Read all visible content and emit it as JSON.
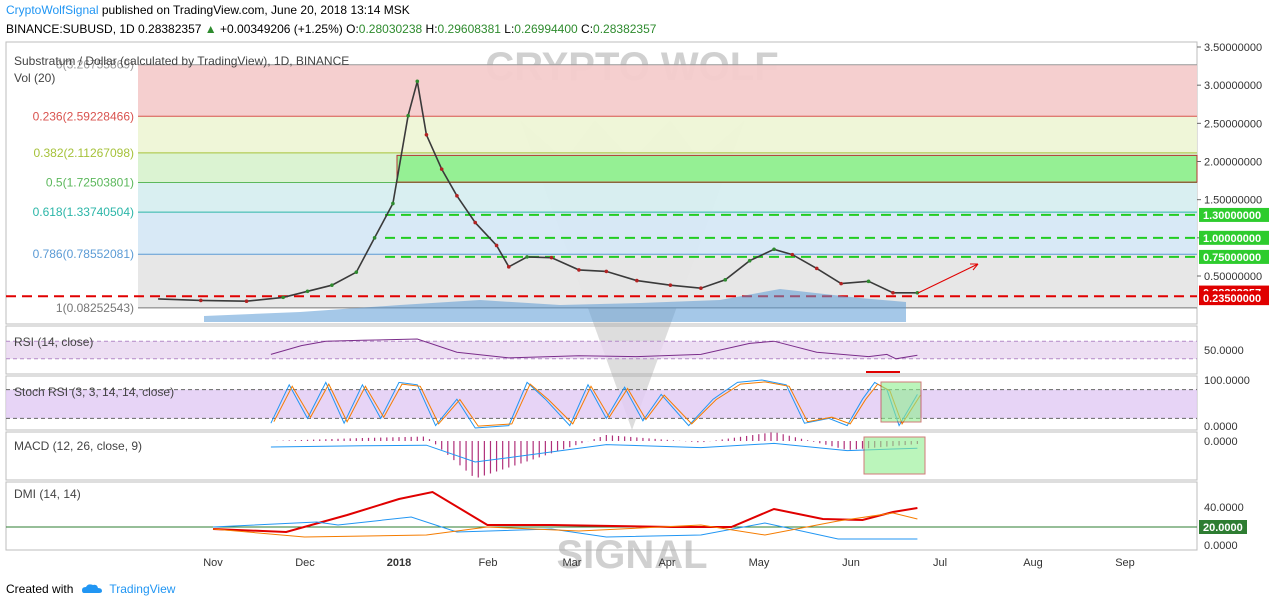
{
  "header": {
    "author": "CryptoWolfSignal",
    "published": " published on TradingView.com, June 20, 2018 13:14 MSK",
    "symbol_line": "BINANCE:SUBUSD, 1D  0.28382357",
    "change": " +0.00349206 (+1.25%)",
    "o_label": " O:",
    "o_value": "0.28030238",
    "h_label": " H:",
    "h_value": "0.29608381",
    "l_label": " L:",
    "l_value": "0.26994400",
    "c_label": " C:",
    "c_value": "0.28382357"
  },
  "footer": {
    "created_with": "Created with",
    "brand": "TradingView"
  },
  "watermark": {
    "top": "CRYPTO WOLF",
    "bottom": "SIGNAL"
  },
  "colors": {
    "fib_red": "#f4cccc",
    "fib_yellow": "#eef5d6",
    "fib_green": "#d9f2d0",
    "fib_teal": "#d7eef0",
    "fib_blue": "#d6e8f5",
    "fib_grey": "#e6e6e6",
    "up": "#2e8b2e",
    "down": "#b22222",
    "rsi": "#7b2d8b",
    "stoch_k": "#2196f3",
    "stoch_d": "#f57c00",
    "macd_hist": "#b0307a",
    "dmi_adx": "#e00000",
    "dmi_plus": "#2196f3",
    "dmi_minus": "#f57c00"
  },
  "chart_data": [
    {
      "type": "line",
      "panel": "price",
      "title": "Substratum / Dollar (calculated by TradingView), 1D, BINANCE",
      "subtitle": "Vol (20)",
      "x_axis": {
        "ticks": [
          "Nov",
          "Dec",
          "2018",
          "Feb",
          "Mar",
          "Apr",
          "May",
          "Jun",
          "Jul",
          "Aug",
          "Sep"
        ]
      },
      "y_axis": {
        "ticks": [
          "3.50000000",
          "3.00000000",
          "2.50000000",
          "2.00000000",
          "1.50000000",
          "1.00000000",
          "0.50000000"
        ],
        "ylim": [
          0.0,
          3.5
        ]
      },
      "fib_levels": [
        {
          "label": "0(3.26755869)",
          "value": 3.26755869
        },
        {
          "label": "0.236(2.59228466)",
          "value": 2.59228466
        },
        {
          "label": "0.382(2.11267098)",
          "value": 2.11267098
        },
        {
          "label": "0.5(1.72503801)",
          "value": 1.72503801
        },
        {
          "label": "0.618(1.33740504)",
          "value": 1.33740504
        },
        {
          "label": "0.786(0.78552081)",
          "value": 0.78552081
        },
        {
          "label": "1(0.08252543)",
          "value": 0.08252543
        }
      ],
      "horizontal_lines": [
        {
          "label": "1.30000000",
          "value": 1.3
        },
        {
          "label": "1.00000000",
          "value": 1.0
        },
        {
          "label": "0.75000000",
          "value": 0.75
        },
        {
          "label": "0.23500000",
          "value": 0.235
        }
      ],
      "last_price_label": "0.28382357",
      "series": [
        {
          "values": [
            [
              "2017-10-14",
              0.2
            ],
            [
              "2017-10-28",
              0.18
            ],
            [
              "2017-11-12",
              0.17
            ],
            [
              "2017-11-24",
              0.22
            ],
            [
              "2017-12-02",
              0.3
            ],
            [
              "2017-12-10",
              0.38
            ],
            [
              "2017-12-18",
              0.55
            ],
            [
              "2017-12-24",
              1.0
            ],
            [
              "2017-12-30",
              1.45
            ],
            [
              "2018-01-04",
              2.6
            ],
            [
              "2018-01-07",
              3.05
            ],
            [
              "2018-01-10",
              2.35
            ],
            [
              "2018-01-15",
              1.9
            ],
            [
              "2018-01-20",
              1.55
            ],
            [
              "2018-01-26",
              1.2
            ],
            [
              "2018-02-02",
              0.9
            ],
            [
              "2018-02-06",
              0.62
            ],
            [
              "2018-02-12",
              0.75
            ],
            [
              "2018-02-20",
              0.74
            ],
            [
              "2018-03-01",
              0.58
            ],
            [
              "2018-03-10",
              0.56
            ],
            [
              "2018-03-20",
              0.44
            ],
            [
              "2018-03-31",
              0.38
            ],
            [
              "2018-04-10",
              0.34
            ],
            [
              "2018-04-18",
              0.45
            ],
            [
              "2018-04-26",
              0.7
            ],
            [
              "2018-05-04",
              0.85
            ],
            [
              "2018-05-10",
              0.78
            ],
            [
              "2018-05-18",
              0.6
            ],
            [
              "2018-05-26",
              0.4
            ],
            [
              "2018-06-04",
              0.43
            ],
            [
              "2018-06-12",
              0.28
            ],
            [
              "2018-06-20",
              0.28
            ]
          ]
        }
      ]
    },
    {
      "type": "line",
      "panel": "rsi",
      "title": "RSI (14, close)",
      "y_axis": {
        "ticks": [
          "50.0000"
        ]
      },
      "series": [
        {
          "values": [
            [
              "2017-11-20",
              40
            ],
            [
              "2017-11-30",
              60
            ],
            [
              "2017-12-08",
              70
            ],
            [
              "2017-12-20",
              72
            ],
            [
              "2018-01-07",
              75
            ],
            [
              "2018-01-20",
              45
            ],
            [
              "2018-02-06",
              32
            ],
            [
              "2018-03-01",
              37
            ],
            [
              "2018-03-20",
              35
            ],
            [
              "2018-04-10",
              40
            ],
            [
              "2018-04-26",
              65
            ],
            [
              "2018-05-04",
              70
            ],
            [
              "2018-05-18",
              45
            ],
            [
              "2018-06-04",
              35
            ],
            [
              "2018-06-10",
              40
            ],
            [
              "2018-06-13",
              30
            ],
            [
              "2018-06-20",
              38
            ]
          ]
        }
      ]
    },
    {
      "type": "line",
      "panel": "stoch_rsi",
      "title": "Stoch RSI (3, 3, 14, 14, close)",
      "y_axis": {
        "ticks": [
          "100.0000",
          "0.0000"
        ]
      },
      "series": [
        {
          "values": [
            [
              "2017-11-20",
              10
            ],
            [
              "2017-11-26",
              90
            ],
            [
              "2017-12-02",
              20
            ],
            [
              "2017-12-08",
              95
            ],
            [
              "2017-12-14",
              10
            ],
            [
              "2017-12-20",
              90
            ],
            [
              "2017-12-26",
              20
            ],
            [
              "2018-01-01",
              95
            ],
            [
              "2018-01-07",
              90
            ],
            [
              "2018-01-13",
              5
            ],
            [
              "2018-01-20",
              60
            ],
            [
              "2018-01-26",
              0
            ],
            [
              "2018-02-06",
              5
            ],
            [
              "2018-02-12",
              95
            ],
            [
              "2018-02-18",
              60
            ],
            [
              "2018-02-26",
              5
            ],
            [
              "2018-03-04",
              90
            ],
            [
              "2018-03-10",
              20
            ],
            [
              "2018-03-16",
              85
            ],
            [
              "2018-03-22",
              15
            ],
            [
              "2018-03-28",
              70
            ],
            [
              "2018-04-06",
              5
            ],
            [
              "2018-04-14",
              60
            ],
            [
              "2018-04-22",
              95
            ],
            [
              "2018-04-30",
              100
            ],
            [
              "2018-05-08",
              90
            ],
            [
              "2018-05-14",
              10
            ],
            [
              "2018-05-22",
              20
            ],
            [
              "2018-05-28",
              5
            ],
            [
              "2018-06-02",
              60
            ],
            [
              "2018-06-06",
              95
            ],
            [
              "2018-06-10",
              80
            ],
            [
              "2018-06-14",
              5
            ],
            [
              "2018-06-20",
              70
            ]
          ]
        }
      ]
    },
    {
      "type": "bar",
      "panel": "macd",
      "title": "MACD (12, 26, close, 9)",
      "y_axis": {
        "ticks": [
          "0.0000"
        ]
      },
      "series": [
        {
          "values": [
            [
              "2017-11-20",
              0.0
            ],
            [
              "2017-12-20",
              0.02
            ],
            [
              "2018-01-10",
              0.03
            ],
            [
              "2018-01-26",
              -0.25
            ],
            [
              "2018-02-10",
              -0.15
            ],
            [
              "2018-03-10",
              0.04
            ],
            [
              "2018-04-10",
              -0.01
            ],
            [
              "2018-05-04",
              0.06
            ],
            [
              "2018-05-28",
              -0.06
            ],
            [
              "2018-06-20",
              -0.02
            ]
          ]
        }
      ]
    },
    {
      "type": "line",
      "panel": "dmi",
      "title": "DMI (14, 14)",
      "y_axis": {
        "ticks": [
          "40.0000",
          "20.0000",
          "0.0000"
        ]
      },
      "series": [
        {
          "values": [
            [
              "2017-11-01",
              18
            ],
            [
              "2017-11-25",
              15
            ],
            [
              "2017-12-15",
              32
            ],
            [
              "2018-01-01",
              48
            ],
            [
              "2018-01-12",
              55
            ],
            [
              "2018-01-30",
              22
            ],
            [
              "2018-02-20",
              22
            ],
            [
              "2018-04-01",
              20
            ],
            [
              "2018-04-20",
              20
            ],
            [
              "2018-05-04",
              38
            ],
            [
              "2018-05-20",
              28
            ],
            [
              "2018-06-02",
              27
            ],
            [
              "2018-06-12",
              35
            ],
            [
              "2018-06-20",
              39
            ]
          ]
        },
        {
          "values": [
            [
              "2017-11-01",
              20
            ],
            [
              "2017-12-05",
              25
            ],
            [
              "2017-12-12",
              22
            ],
            [
              "2018-01-05",
              30
            ],
            [
              "2018-01-20",
              15
            ],
            [
              "2018-02-20",
              18
            ],
            [
              "2018-03-10",
              10
            ],
            [
              "2018-04-10",
              12
            ],
            [
              "2018-05-01",
              24
            ],
            [
              "2018-05-25",
              8
            ],
            [
              "2018-06-20",
              8
            ]
          ]
        },
        {
          "values": [
            [
              "2017-11-01",
              18
            ],
            [
              "2017-12-01",
              10
            ],
            [
              "2018-01-10",
              12
            ],
            [
              "2018-01-30",
              20
            ],
            [
              "2018-03-01",
              16
            ],
            [
              "2018-04-10",
              22
            ],
            [
              "2018-05-01",
              12
            ],
            [
              "2018-05-25",
              26
            ],
            [
              "2018-06-12",
              34
            ],
            [
              "2018-06-20",
              28
            ]
          ]
        }
      ]
    }
  ]
}
